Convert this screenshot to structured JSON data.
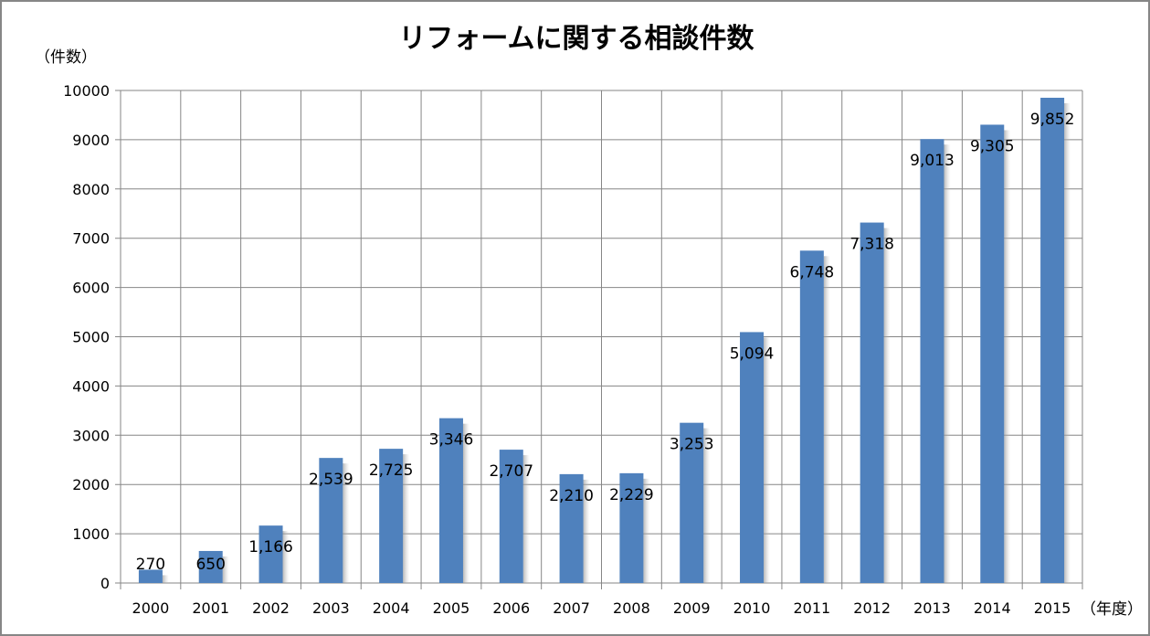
{
  "chart_data": {
    "type": "bar",
    "title": "リフォームに関する相談件数",
    "xlabel": "（年度）",
    "ylabel": "（件数）",
    "categories": [
      "2000",
      "2001",
      "2002",
      "2003",
      "2004",
      "2005",
      "2006",
      "2007",
      "2008",
      "2009",
      "2010",
      "2011",
      "2012",
      "2013",
      "2014",
      "2015"
    ],
    "values": [
      270,
      650,
      1166,
      2539,
      2725,
      3346,
      2707,
      2210,
      2229,
      3253,
      5094,
      6748,
      7318,
      9013,
      9305,
      9852
    ],
    "data_labels": [
      "270",
      "650",
      "1,166",
      "2,539",
      "2,725",
      "3,346",
      "2,707",
      "2,210",
      "2,229",
      "3,253",
      "5,094",
      "6,748",
      "7,318",
      "9,013",
      "9,305",
      "9,852"
    ],
    "ylim": [
      0,
      10000
    ],
    "yticks": [
      0,
      1000,
      2000,
      3000,
      4000,
      5000,
      6000,
      7000,
      8000,
      9000,
      10000
    ],
    "grid": true,
    "bar_color": "#4F81BD",
    "legend": "none"
  }
}
